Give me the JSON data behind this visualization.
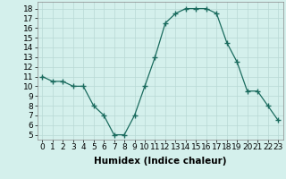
{
  "x": [
    0,
    1,
    2,
    3,
    4,
    5,
    6,
    7,
    8,
    9,
    10,
    11,
    12,
    13,
    14,
    15,
    16,
    17,
    18,
    19,
    20,
    21,
    22,
    23
  ],
  "y": [
    11,
    10.5,
    10.5,
    10,
    10,
    8,
    7,
    5,
    5,
    7,
    10,
    13,
    16.5,
    17.5,
    18,
    18,
    18,
    17.5,
    14.5,
    12.5,
    9.5,
    9.5,
    8,
    6.5
  ],
  "line_color": "#1a6b5e",
  "marker": "+",
  "marker_size": 4,
  "bg_color": "#d4f0ec",
  "grid_color": "#b8d8d4",
  "xlabel": "Humidex (Indice chaleur)",
  "xlabel_fontsize": 7.5,
  "tick_fontsize": 6.5,
  "ylim": [
    4.5,
    18.7
  ],
  "yticks": [
    5,
    6,
    7,
    8,
    9,
    10,
    11,
    12,
    13,
    14,
    15,
    16,
    17,
    18
  ],
  "xticks": [
    0,
    1,
    2,
    3,
    4,
    5,
    6,
    7,
    8,
    9,
    10,
    11,
    12,
    13,
    14,
    15,
    16,
    17,
    18,
    19,
    20,
    21,
    22,
    23
  ],
  "xlim": [
    -0.5,
    23.5
  ]
}
